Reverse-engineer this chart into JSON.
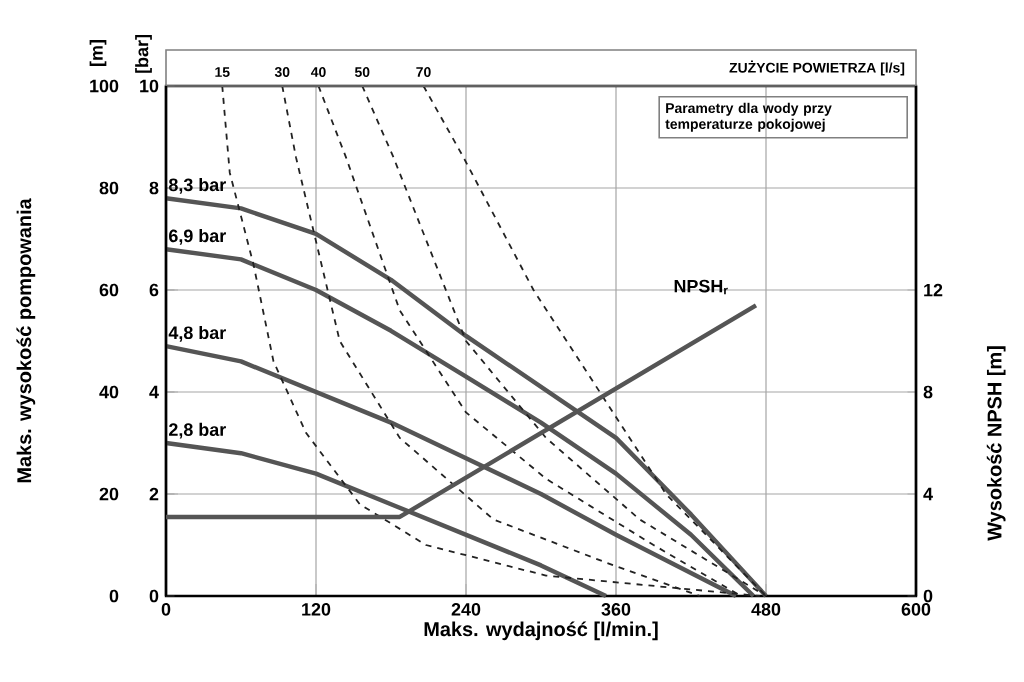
{
  "chart_data": {
    "type": "line",
    "xlabel": "Maks. wydajność [l/min.]",
    "ylabel": "Maks. wysokość pompowania",
    "y2label": "Wysokość NPSH [m]",
    "y3label": "[bar]",
    "xlim": [
      0,
      600
    ],
    "xticks": [
      0,
      120,
      240,
      360,
      480,
      600
    ],
    "ylim": [
      0,
      100
    ],
    "yticks": [
      0,
      20,
      40,
      60,
      80,
      100
    ],
    "y3lim": [
      0,
      10
    ],
    "y3ticks": [
      0,
      2,
      4,
      6,
      8,
      10
    ],
    "y2lim": [
      0,
      20
    ],
    "y2ticks": [
      0,
      4,
      8,
      12
    ],
    "grid": true,
    "annotations": [
      "[m]",
      "ZUŻYCIE POWIETRZA [l/s]",
      "Parametry dla wody przy temperaturze pokojowej"
    ],
    "series": [
      {
        "name": "8,3 bar",
        "color": "#555555",
        "line_style": "solid",
        "x": [
          0,
          60,
          120,
          180,
          240,
          300,
          360,
          420,
          480
        ],
        "values": [
          78,
          76,
          71,
          62,
          51,
          41,
          31,
          16,
          0
        ]
      },
      {
        "name": "6,9 bar",
        "color": "#555555",
        "line_style": "solid",
        "x": [
          0,
          60,
          120,
          180,
          240,
          300,
          360,
          420,
          470
        ],
        "values": [
          68,
          66,
          60,
          52,
          43,
          34,
          24,
          12,
          0
        ]
      },
      {
        "name": "4,8 bar",
        "color": "#555555",
        "line_style": "solid",
        "x": [
          0,
          60,
          120,
          180,
          240,
          300,
          360,
          456
        ],
        "values": [
          49,
          46,
          40,
          34,
          27,
          20,
          12,
          0
        ]
      },
      {
        "name": "2,8 bar",
        "color": "#555555",
        "line_style": "solid",
        "x": [
          0,
          60,
          120,
          180,
          240,
          300,
          352
        ],
        "values": [
          30,
          28,
          24,
          18,
          12,
          6,
          0
        ]
      },
      {
        "name": "NPSH$_{r}$",
        "color": "#555555",
        "line_style": "solid",
        "axis": "y2",
        "x": [
          0,
          187,
          472
        ],
        "values": [
          3.1,
          3.1,
          11.4
        ]
      },
      {
        "name": "15",
        "color": "#222222",
        "line_style": "dashed",
        "x": [
          45,
          51,
          70,
          86,
          112,
          155,
          208,
          304,
          432,
          475
        ],
        "values": [
          100,
          83,
          65,
          46,
          32,
          18,
          10,
          4,
          1,
          0
        ]
      },
      {
        "name": "30",
        "color": "#222222",
        "line_style": "dashed",
        "x": [
          93,
          104,
          139,
          187,
          262,
          358,
          427
        ],
        "values": [
          100,
          86,
          50,
          31,
          15,
          6,
          0
        ]
      },
      {
        "name": "40",
        "color": "#222222",
        "line_style": "dashed",
        "x": [
          122,
          144,
          187,
          240,
          304,
          390,
          460
        ],
        "values": [
          100,
          86,
          56,
          36,
          23,
          10,
          0
        ]
      },
      {
        "name": "50",
        "color": "#222222",
        "line_style": "dashed",
        "x": [
          157,
          182,
          240,
          304,
          379,
          480
        ],
        "values": [
          100,
          86,
          50,
          31,
          15,
          0
        ]
      },
      {
        "name": "70",
        "color": "#222222",
        "line_style": "dashed",
        "x": [
          206,
          238,
          294,
          347,
          400,
          480
        ],
        "values": [
          100,
          86,
          60,
          40,
          20,
          0
        ]
      }
    ]
  }
}
